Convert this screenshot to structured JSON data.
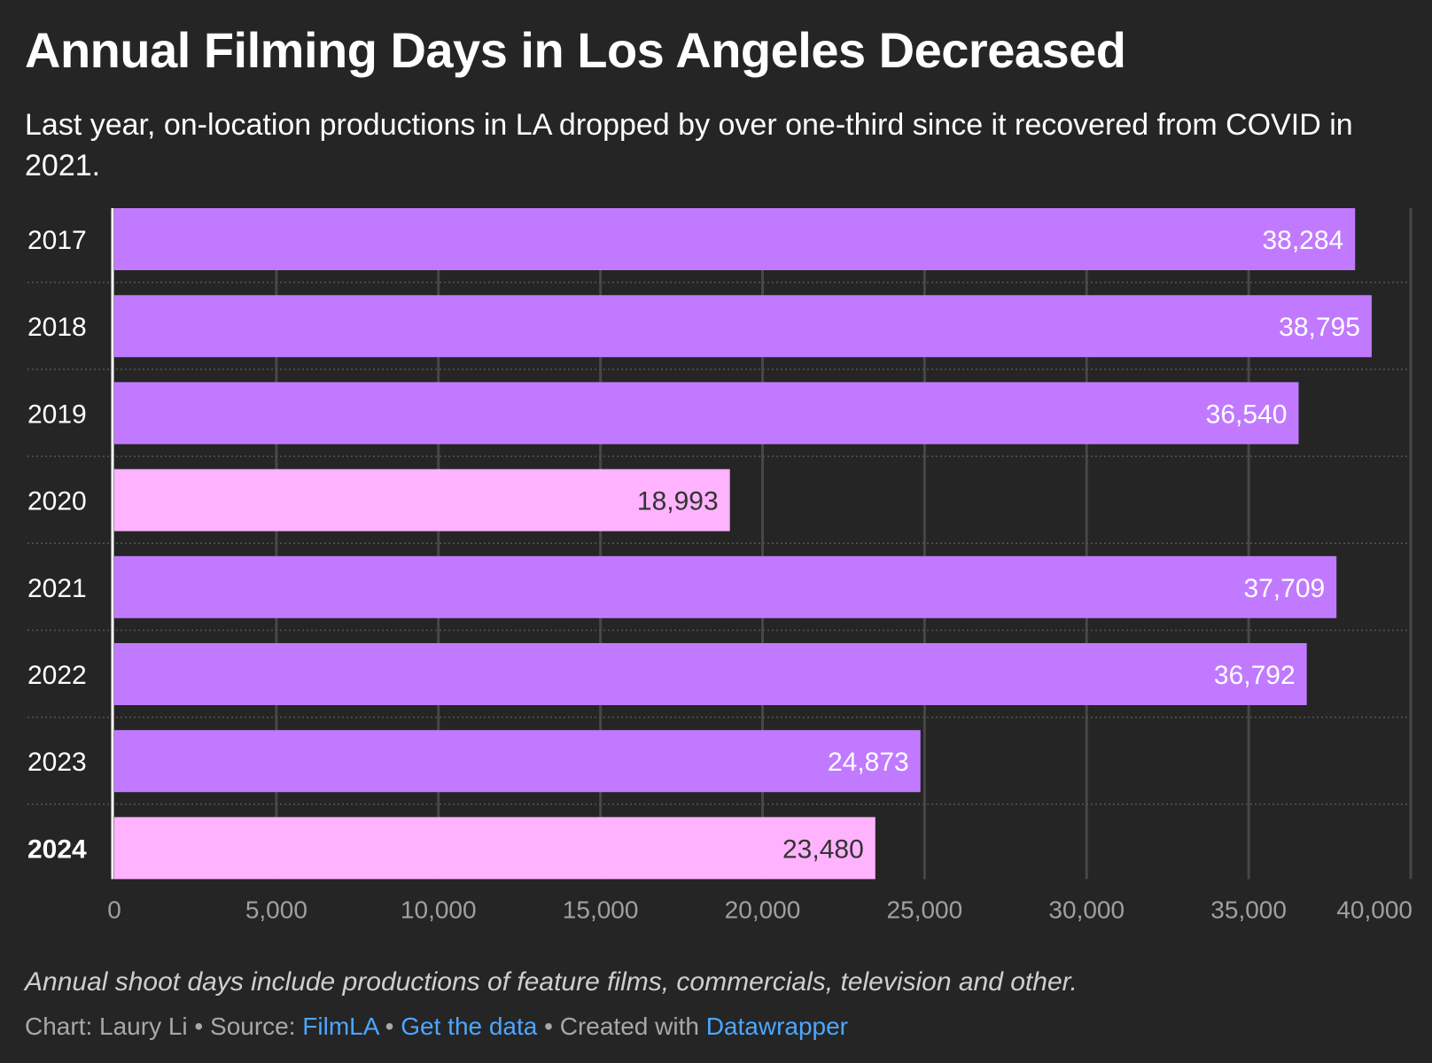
{
  "title": "Annual Filming Days in Los Angeles Decreased",
  "subtitle": "Last year, on-location productions in LA dropped by over one-third since it recovered from COVID in 2021.",
  "notes": "Annual shoot days include productions of feature films, commercials, television and other.",
  "credits": {
    "chart_label": "Chart: Laury Li",
    "sep": " • ",
    "source_label": "Source: ",
    "source_link": "FilmLA",
    "data_link": "Get the data",
    "created_label": "Created with ",
    "tool_link": "Datawrapper"
  },
  "colors": {
    "background": "#252525",
    "default_bar": "#c17aff",
    "highlight_bar": "#ffb3ff",
    "grid": "#474747"
  },
  "chart_data": {
    "type": "bar",
    "orientation": "horizontal",
    "categories": [
      "2017",
      "2018",
      "2019",
      "2020",
      "2021",
      "2022",
      "2023",
      "2024"
    ],
    "values": [
      38284,
      38795,
      36540,
      18993,
      37709,
      36792,
      24873,
      23480
    ],
    "value_labels": [
      "38,284",
      "38,795",
      "36,540",
      "18,993",
      "37,709",
      "36,792",
      "24,873",
      "23,480"
    ],
    "highlighted": [
      "2020",
      "2024"
    ],
    "bold_categories": [
      "2024"
    ],
    "xlim": [
      0,
      40000
    ],
    "xticks": [
      0,
      5000,
      10000,
      15000,
      20000,
      25000,
      30000,
      35000,
      40000
    ],
    "xtick_labels": [
      "0",
      "5,000",
      "10,000",
      "15,000",
      "20,000",
      "25,000",
      "30,000",
      "35,000",
      "40,000"
    ],
    "grid": true
  }
}
